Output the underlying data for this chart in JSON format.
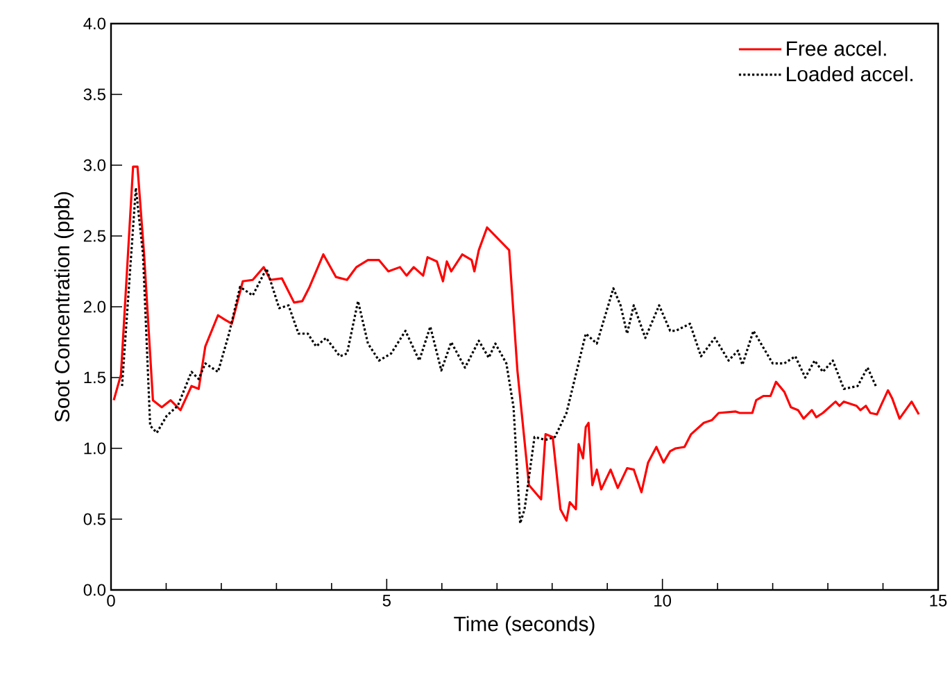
{
  "chart_data": {
    "type": "line",
    "xlabel": "Time (seconds)",
    "ylabel": "Soot Concentration (ppb)",
    "xlim": [
      0,
      15
    ],
    "ylim": [
      0,
      4.0
    ],
    "xticks": [
      0,
      5,
      10,
      15
    ],
    "yticks": [
      {
        "value": 0,
        "label": "0.0"
      },
      0.5,
      {
        "value": 1,
        "label": "1.0"
      },
      1.5,
      {
        "value": 2,
        "label": "2.0"
      },
      2.5,
      {
        "value": 3,
        "label": "3.0"
      },
      3.5,
      {
        "value": 4,
        "label": "4.0"
      }
    ],
    "legend": "top right",
    "grid": false,
    "series": [
      {
        "name": "Free accel.",
        "color": "#ff0000",
        "line_style": "solid",
        "x": [
          0.05,
          0.18,
          0.4,
          0.48,
          0.6,
          0.76,
          0.92,
          1.08,
          1.26,
          1.46,
          1.59,
          1.71,
          1.94,
          2.06,
          2.19,
          2.39,
          2.57,
          2.77,
          2.89,
          3.1,
          3.32,
          3.47,
          3.6,
          3.85,
          4.08,
          4.28,
          4.45,
          4.66,
          4.86,
          5.03,
          5.24,
          5.36,
          5.49,
          5.66,
          5.74,
          5.91,
          6.02,
          6.09,
          6.17,
          6.37,
          6.54,
          6.59,
          6.67,
          6.82,
          7.22,
          7.37,
          7.58,
          7.8,
          7.88,
          8.01,
          8.15,
          8.26,
          8.32,
          8.43,
          8.48,
          8.56,
          8.61,
          8.66,
          8.73,
          8.81,
          8.89,
          9.06,
          9.19,
          9.36,
          9.48,
          9.62,
          9.74,
          9.89,
          10.02,
          10.14,
          10.24,
          10.4,
          10.52,
          10.75,
          10.9,
          11.02,
          11.33,
          11.4,
          11.63,
          11.7,
          11.83,
          11.96,
          12.06,
          12.21,
          12.33,
          12.46,
          12.56,
          12.71,
          12.79,
          12.91,
          13.14,
          13.21,
          13.29,
          13.52,
          13.59,
          13.69,
          13.77,
          13.89,
          14.09,
          14.17,
          14.3,
          14.52,
          14.65
        ],
        "values": [
          1.34,
          1.52,
          2.99,
          2.99,
          2.37,
          1.34,
          1.29,
          1.34,
          1.27,
          1.44,
          1.42,
          1.72,
          1.94,
          1.91,
          1.88,
          2.18,
          2.19,
          2.28,
          2.19,
          2.2,
          2.03,
          2.04,
          2.14,
          2.37,
          2.21,
          2.19,
          2.28,
          2.33,
          2.33,
          2.25,
          2.28,
          2.22,
          2.28,
          2.22,
          2.35,
          2.32,
          2.18,
          2.32,
          2.25,
          2.37,
          2.33,
          2.25,
          2.4,
          2.56,
          2.4,
          1.55,
          0.74,
          0.64,
          1.1,
          1.08,
          0.57,
          0.49,
          0.62,
          0.57,
          1.03,
          0.93,
          1.15,
          1.18,
          0.74,
          0.85,
          0.71,
          0.85,
          0.72,
          0.86,
          0.85,
          0.69,
          0.9,
          1.01,
          0.9,
          0.98,
          1.0,
          1.01,
          1.1,
          1.18,
          1.2,
          1.25,
          1.26,
          1.25,
          1.25,
          1.34,
          1.37,
          1.37,
          1.47,
          1.4,
          1.29,
          1.27,
          1.21,
          1.27,
          1.22,
          1.25,
          1.33,
          1.3,
          1.33,
          1.3,
          1.27,
          1.3,
          1.25,
          1.24,
          1.41,
          1.35,
          1.21,
          1.33,
          1.24
        ]
      },
      {
        "name": "Loaded accel.",
        "color": "#000000",
        "line_style": "dotted",
        "x": [
          0.2,
          0.45,
          0.58,
          0.71,
          0.83,
          1.01,
          1.21,
          1.46,
          1.59,
          1.71,
          1.94,
          2.14,
          2.34,
          2.57,
          2.82,
          3.05,
          3.22,
          3.4,
          3.57,
          3.72,
          3.9,
          4.15,
          4.28,
          4.48,
          4.66,
          4.86,
          5.08,
          5.34,
          5.59,
          5.79,
          5.99,
          6.17,
          6.42,
          6.67,
          6.85,
          6.97,
          7.17,
          7.3,
          7.42,
          7.5,
          7.68,
          7.88,
          8.05,
          8.26,
          8.61,
          8.81,
          9.11,
          9.24,
          9.36,
          9.48,
          9.69,
          9.94,
          10.14,
          10.24,
          10.5,
          10.7,
          10.95,
          11.2,
          11.37,
          11.45,
          11.65,
          12.0,
          12.21,
          12.41,
          12.59,
          12.76,
          12.91,
          13.09,
          13.29,
          13.54,
          13.72,
          13.87
        ],
        "values": [
          1.44,
          2.84,
          2.37,
          1.16,
          1.11,
          1.23,
          1.3,
          1.54,
          1.49,
          1.6,
          1.54,
          1.81,
          2.14,
          2.08,
          2.27,
          1.99,
          2.01,
          1.81,
          1.81,
          1.72,
          1.78,
          1.65,
          1.67,
          2.04,
          1.74,
          1.62,
          1.67,
          1.83,
          1.62,
          1.86,
          1.55,
          1.75,
          1.57,
          1.76,
          1.64,
          1.74,
          1.6,
          1.29,
          0.47,
          0.57,
          1.08,
          1.06,
          1.08,
          1.25,
          1.81,
          1.74,
          2.13,
          2.01,
          1.81,
          2.01,
          1.78,
          2.01,
          1.83,
          1.83,
          1.88,
          1.65,
          1.78,
          1.62,
          1.69,
          1.59,
          1.83,
          1.6,
          1.6,
          1.65,
          1.5,
          1.62,
          1.54,
          1.62,
          1.42,
          1.44,
          1.57,
          1.44
        ]
      }
    ]
  }
}
